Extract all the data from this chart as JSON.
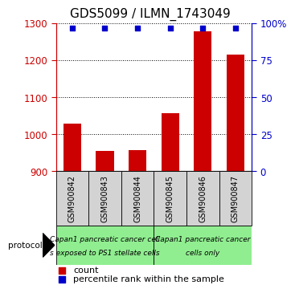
{
  "title": "GDS5099 / ILMN_1743049",
  "samples": [
    "GSM900842",
    "GSM900843",
    "GSM900844",
    "GSM900845",
    "GSM900846",
    "GSM900847"
  ],
  "counts": [
    1030,
    955,
    958,
    1058,
    1280,
    1215
  ],
  "percentile_ranks": [
    97,
    97,
    97,
    97,
    97,
    97
  ],
  "ylim": [
    900,
    1300
  ],
  "y2lim": [
    0,
    100
  ],
  "yticks": [
    900,
    1000,
    1100,
    1200,
    1300
  ],
  "y2ticks": [
    0,
    25,
    50,
    75,
    100
  ],
  "y2ticklabels": [
    "0",
    "25",
    "50",
    "75",
    "100%"
  ],
  "bar_color": "#cc0000",
  "dot_color": "#0000cc",
  "bar_baseline": 900,
  "group1_label_line1": "Capan1 pancreatic cancer cell",
  "group1_label_line2": "s exposed to PS1 stellate cells",
  "group2_label_line1": "Capan1 pancreatic cancer",
  "group2_label_line2": "cells only",
  "group_color": "#90ee90",
  "sample_box_color": "#d3d3d3",
  "protocol_label": "protocol",
  "legend_count_label": "count",
  "legend_percentile_label": "percentile rank within the sample",
  "title_fontsize": 11,
  "tick_fontsize": 8.5,
  "sample_fontsize": 7,
  "proto_fontsize": 6.5,
  "legend_fontsize": 8
}
